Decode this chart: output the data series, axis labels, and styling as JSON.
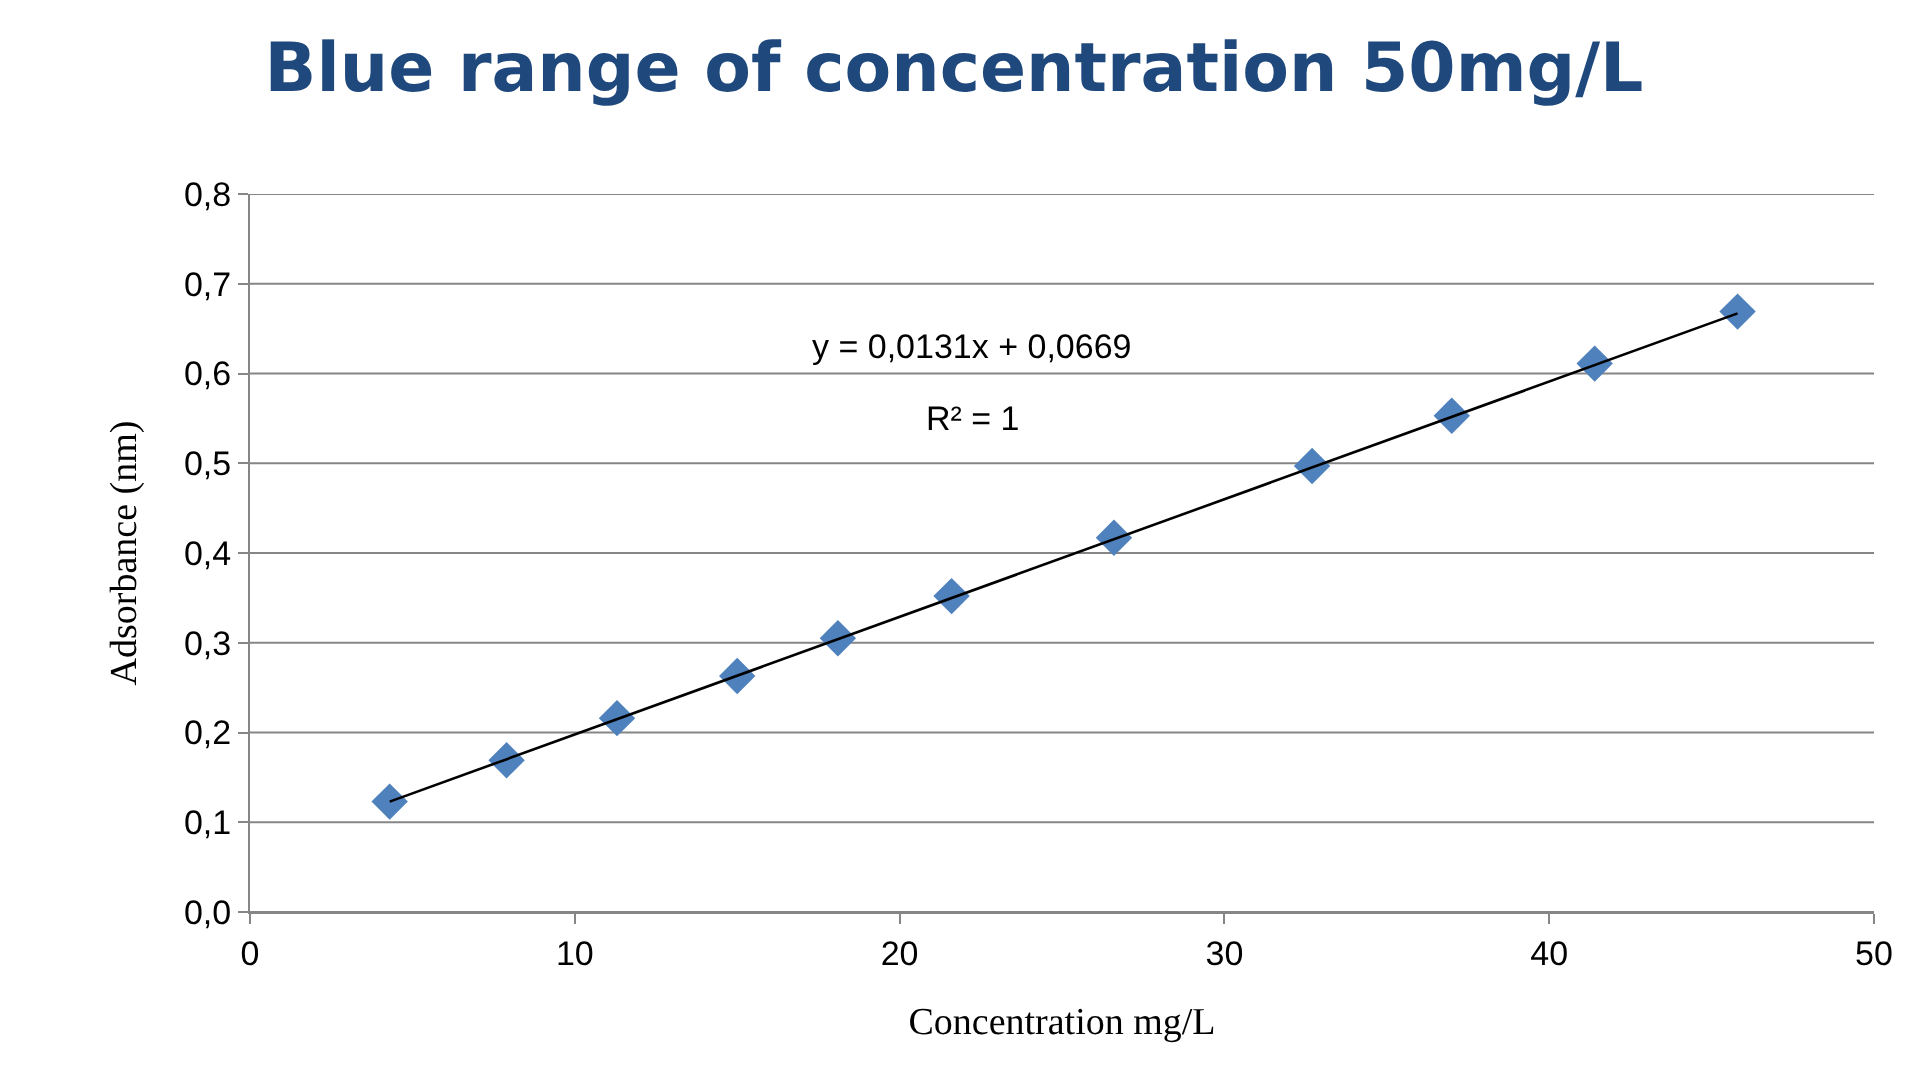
{
  "chart_data": {
    "type": "scatter",
    "title": "Blue range of concentration 50mg/L",
    "xlabel": "Concentration mg/L",
    "ylabel": "Adsorbance (nm)",
    "annotations": [
      "y = 0,0131x + 0,0669",
      "R² = 1"
    ],
    "series": [
      {
        "color": "#4f81bd",
        "marker": "diamond",
        "x": [
          4.3,
          7.9,
          11.3,
          15.0,
          18.1,
          21.6,
          26.6,
          32.7,
          37.0,
          41.4,
          45.8
        ],
        "values": [
          0.123,
          0.169,
          0.216,
          0.263,
          0.305,
          0.352,
          0.417,
          0.497,
          0.553,
          0.611,
          0.669
        ]
      },
      {
        "type": "line",
        "color": "#000000",
        "marker": "none",
        "line_style": "solid",
        "x": [
          4.3,
          45.8
        ],
        "values": [
          0.123,
          0.667
        ]
      }
    ],
    "xlim": [
      0,
      50
    ],
    "xticks": [
      0,
      10,
      20,
      30,
      40,
      50
    ],
    "ylim": [
      0,
      0.8
    ],
    "yticks": [
      {
        "value": 0,
        "label": "0,0"
      },
      {
        "value": 0.1,
        "label": "0,1"
      },
      {
        "value": 0.2,
        "label": "0,2"
      },
      {
        "value": 0.3,
        "label": "0,3"
      },
      {
        "value": 0.4,
        "label": "0,4"
      },
      {
        "value": 0.5,
        "label": "0,5"
      },
      {
        "value": 0.6,
        "label": "0,6"
      },
      {
        "value": 0.7,
        "label": "0,7"
      },
      {
        "value": 0.8,
        "label": "0,8"
      }
    ],
    "grid": "y"
  }
}
